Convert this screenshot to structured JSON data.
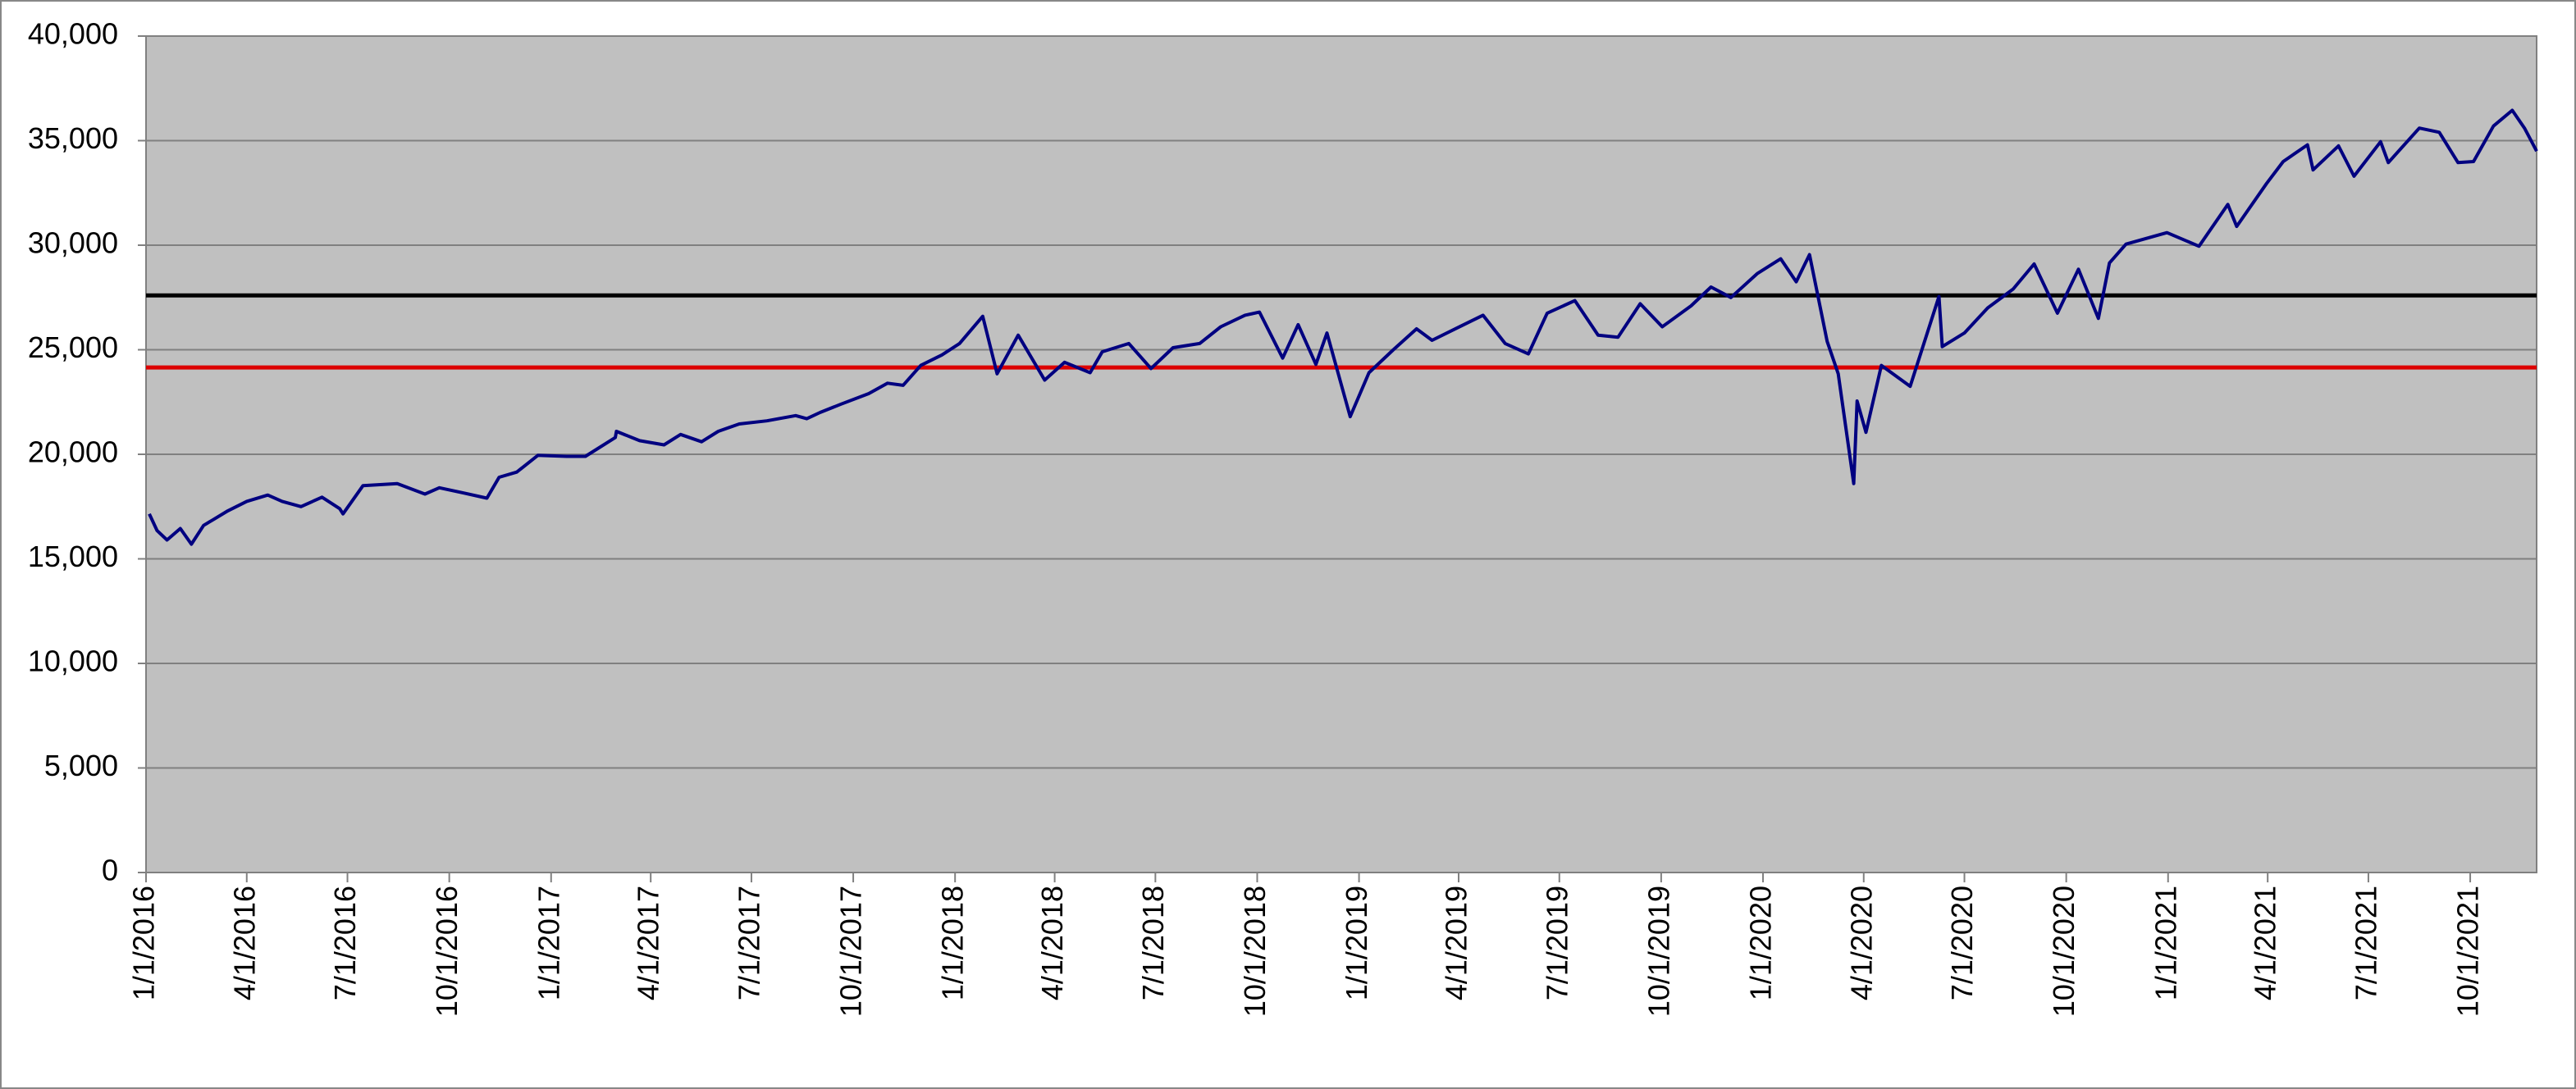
{
  "chart_data": {
    "type": "line",
    "x": [
      "1/4/2016",
      "1/11/2016",
      "1/20/2016",
      "2/1/2016",
      "2/11/2016",
      "2/22/2016",
      "3/1/2016",
      "3/15/2016",
      "4/1/2016",
      "4/20/2016",
      "5/3/2016",
      "5/20/2016",
      "6/8/2016",
      "6/24/2016",
      "6/27/2016",
      "7/15/2016",
      "8/15/2016",
      "9/9/2016",
      "9/22/2016",
      "10/14/2016",
      "11/4/2016",
      "11/15/2016",
      "12/1/2016",
      "12/20/2016",
      "1/15/2017",
      "2/1/2017",
      "2/28/2017",
      "3/1/2017",
      "3/22/2017",
      "4/13/2017",
      "4/28/2017",
      "5/17/2017",
      "6/1/2017",
      "6/20/2017",
      "7/15/2017",
      "8/10/2017",
      "8/20/2017",
      "9/1/2017",
      "9/20/2017",
      "10/15/2017",
      "11/1/2017",
      "11/15/2017",
      "12/1/2017",
      "12/20/2017",
      "1/5/2018",
      "1/26/2018",
      "2/8/2018",
      "2/27/2018",
      "3/23/2018",
      "4/10/2018",
      "5/3/2018",
      "5/14/2018",
      "6/7/2018",
      "6/27/2018",
      "7/17/2018",
      "8/10/2018",
      "8/29/2018",
      "9/20/2018",
      "10/3/2018",
      "10/24/2018",
      "11/7/2018",
      "11/23/2018",
      "12/3/2018",
      "12/24/2018",
      "1/10/2019",
      "2/1/2019",
      "2/22/2019",
      "3/8/2019",
      "4/23/2019",
      "5/13/2019",
      "6/3/2019",
      "6/20/2019",
      "7/15/2019",
      "8/5/2019",
      "8/23/2019",
      "9/12/2019",
      "10/2/2019",
      "10/28/2019",
      "11/15/2019",
      "12/3/2019",
      "12/27/2019",
      "1/17/2020",
      "1/31/2020",
      "2/12/2020",
      "2/28/2020",
      "3/9/2020",
      "3/23/2020",
      "3/26/2020",
      "4/3/2020",
      "4/17/2020",
      "5/13/2020",
      "6/8/2020",
      "6/11/2020",
      "7/1/2020",
      "7/22/2020",
      "8/14/2020",
      "9/2/2020",
      "9/23/2020",
      "10/12/2020",
      "10/30/2020",
      "11/9/2020",
      "11/24/2020",
      "12/31/2020",
      "1/29/2021",
      "2/24/2021",
      "3/4/2021",
      "3/31/2021",
      "4/15/2021",
      "5/7/2021",
      "5/12/2021",
      "6/4/2021",
      "6/18/2021",
      "7/12/2021",
      "7/19/2021",
      "8/16/2021",
      "9/3/2021",
      "9/20/2021",
      "10/4/2021",
      "10/22/2021",
      "11/8/2021",
      "11/19/2021",
      "11/26/2021",
      "11/30/2021"
    ],
    "series": [
      {
        "color": "#000080",
        "values": [
          17150,
          16350,
          15900,
          16450,
          15700,
          16600,
          16850,
          17300,
          17750,
          18050,
          17750,
          17500,
          17950,
          17400,
          17150,
          18500,
          18600,
          18100,
          18400,
          18150,
          17900,
          18900,
          19150,
          19950,
          19900,
          19900,
          20800,
          21100,
          20650,
          20450,
          20950,
          20600,
          21100,
          21450,
          21600,
          21850,
          21700,
          22000,
          22400,
          22900,
          23400,
          23300,
          24250,
          24750,
          25300,
          26600,
          23850,
          25700,
          23550,
          24400,
          23900,
          24900,
          25300,
          24100,
          25100,
          25300,
          26100,
          26650,
          26800,
          24600,
          26200,
          24300,
          25800,
          21800,
          23900,
          25000,
          26000,
          25450,
          26650,
          25300,
          24800,
          26750,
          27350,
          25700,
          25600,
          27200,
          26100,
          27100,
          28000,
          27500,
          28650,
          29350,
          28250,
          29550,
          25400,
          23850,
          18600,
          22550,
          21050,
          24250,
          23250,
          27550,
          25150,
          25800,
          27000,
          27900,
          29100,
          26750,
          28850,
          26500,
          29150,
          30050,
          30600,
          29950,
          31950,
          30900,
          32950,
          34000,
          34800,
          33600,
          34750,
          33300,
          34950,
          33950,
          35600,
          35400,
          33950,
          34000,
          35700,
          36450,
          35600,
          34900,
          34500
        ]
      }
    ],
    "hlines": [
      {
        "value": 27600,
        "color": "#000000"
      },
      {
        "value": 24150,
        "color": "#dd0000"
      }
    ],
    "xlim": [
      "1/1/2016",
      "11/30/2021"
    ],
    "xticks": [
      "1/1/2016",
      "4/1/2016",
      "7/1/2016",
      "10/1/2016",
      "1/1/2017",
      "4/1/2017",
      "7/1/2017",
      "10/1/2017",
      "1/1/2018",
      "4/1/2018",
      "7/1/2018",
      "10/1/2018",
      "1/1/2019",
      "4/1/2019",
      "7/1/2019",
      "10/1/2019",
      "1/1/2020",
      "4/1/2020",
      "7/1/2020",
      "10/1/2020",
      "1/1/2021",
      "4/1/2021",
      "7/1/2021",
      "10/1/2021"
    ],
    "ylim": [
      0,
      40000
    ],
    "yticks": [
      0,
      {
        "value": 5000,
        "label": "5,000"
      },
      {
        "value": 10000,
        "label": "10,000"
      },
      {
        "value": 15000,
        "label": "15,000"
      },
      {
        "value": 20000,
        "label": "20,000"
      },
      {
        "value": 25000,
        "label": "25,000"
      },
      {
        "value": 30000,
        "label": "30,000"
      },
      {
        "value": 35000,
        "label": "35,000"
      },
      {
        "value": 40000,
        "label": "40,000"
      }
    ],
    "grid": true
  }
}
